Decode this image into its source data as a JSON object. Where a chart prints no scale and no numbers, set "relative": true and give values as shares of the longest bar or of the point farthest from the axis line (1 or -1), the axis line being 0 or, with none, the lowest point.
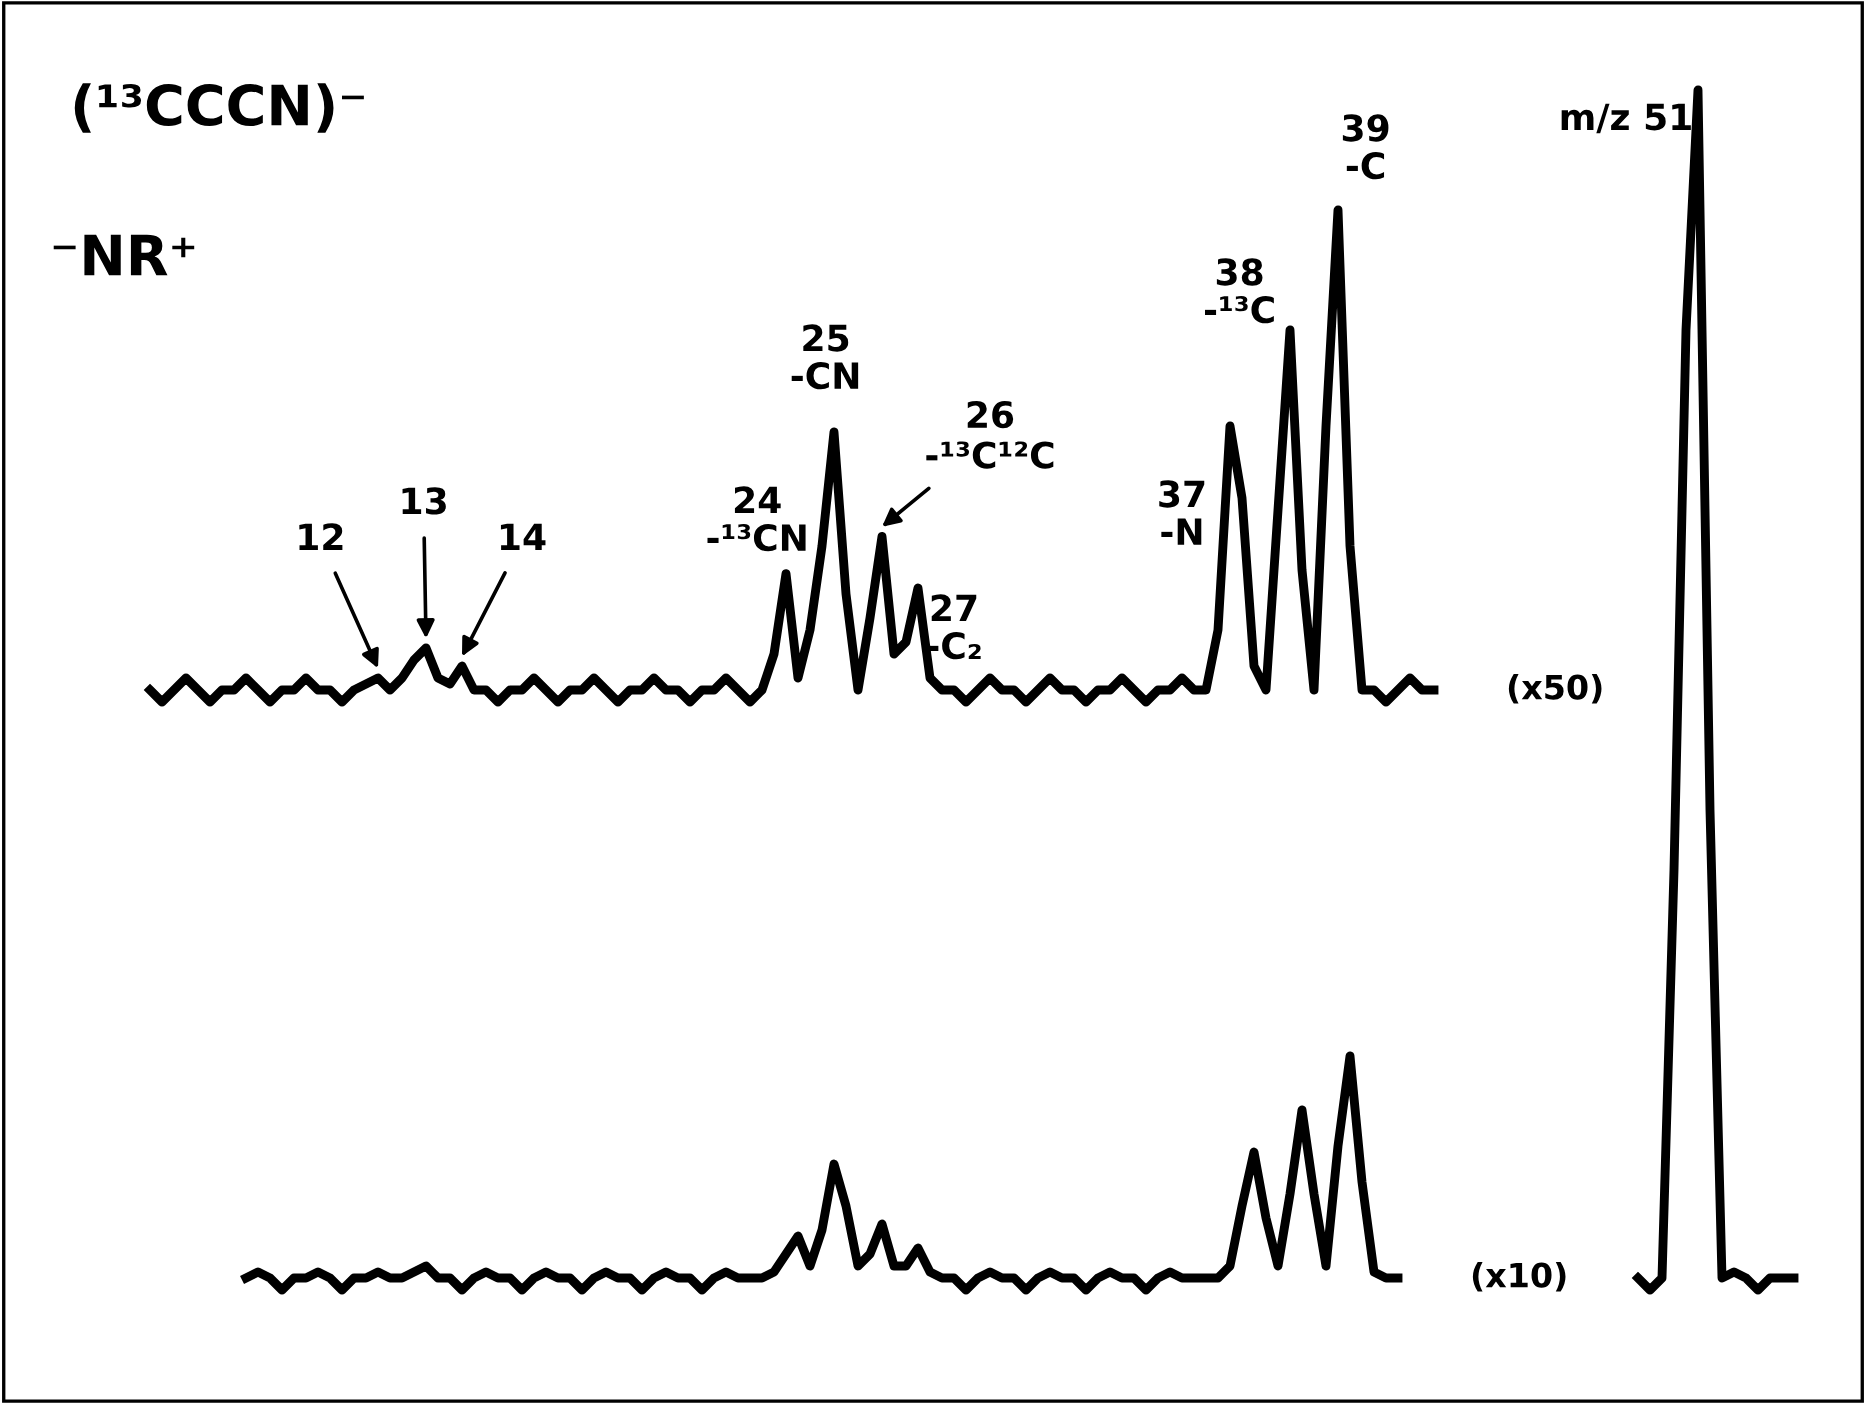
{
  "chart_data": {
    "type": "line",
    "relative": true,
    "title": "(¹³CCCN)⁻",
    "subtitle": "⁻NR⁺",
    "grid": false,
    "legend": false,
    "categories": [
      null,
      null,
      null,
      null,
      null,
      null,
      null,
      null,
      null,
      null,
      null,
      null,
      null,
      null,
      null,
      null,
      null,
      null,
      null,
      null,
      null,
      null,
      null,
      null,
      null,
      null,
      null,
      null,
      null,
      null,
      null,
      null,
      null,
      null,
      null,
      null,
      null,
      null,
      null,
      null,
      null,
      null,
      null,
      null,
      null,
      null,
      null,
      null,
      null,
      null,
      null,
      null,
      null,
      null,
      null,
      null,
      null,
      null,
      null,
      null,
      null,
      null,
      null,
      null,
      null,
      null,
      null,
      null,
      null,
      null,
      null,
      null,
      null,
      null,
      null,
      null,
      null,
      null,
      null,
      null,
      null,
      null,
      null,
      null,
      null,
      null,
      null,
      null,
      null,
      null,
      null,
      null,
      null,
      null,
      null,
      null,
      null,
      null,
      null,
      null,
      null,
      null,
      null,
      null,
      null,
      null,
      null,
      null,
      null,
      null,
      null,
      null,
      null,
      null,
      null,
      null,
      null,
      null,
      null,
      null,
      null,
      null,
      null,
      null,
      null,
      null,
      null,
      null,
      null,
      null,
      null,
      null,
      null,
      null,
      null,
      null,
      null,
      null
    ],
    "series": [
      {
        "name": "(x50)",
        "color": "#000000",
        "values": [
          0.5,
          0.49,
          0.5,
          0.51,
          0.5,
          0.49,
          0.5,
          0.5,
          0.51,
          0.5,
          0.49,
          0.5,
          0.5,
          0.51,
          0.5,
          0.5,
          0.49,
          0.5,
          0.505,
          0.51,
          0.5,
          0.51,
          0.525,
          0.535,
          0.51,
          0.505,
          0.52,
          0.5,
          0.5,
          0.49,
          0.5,
          0.5,
          0.51,
          0.5,
          0.49,
          0.5,
          0.5,
          0.51,
          0.5,
          0.49,
          0.5,
          0.5,
          0.51,
          0.5,
          0.5,
          0.49,
          0.5,
          0.5,
          0.51,
          0.5,
          0.49,
          0.5,
          0.53,
          0.597,
          0.51,
          0.55,
          0.62,
          0.715,
          0.58,
          0.5,
          0.56,
          0.628,
          0.53,
          0.54,
          0.585,
          0.51,
          0.5,
          0.5,
          0.49,
          0.5,
          0.51,
          0.5,
          0.5,
          0.49,
          0.5,
          0.51,
          0.5,
          0.5,
          0.49,
          0.5,
          0.5,
          0.51,
          0.5,
          0.49,
          0.5,
          0.5,
          0.51,
          0.5,
          0.5,
          0.55,
          0.72,
          0.66,
          0.52,
          0.5,
          0.65,
          0.8,
          0.6,
          0.5,
          0.72,
          0.9,
          0.62,
          0.5,
          0.5,
          0.49,
          0.5,
          0.51,
          0.5,
          0.5,
          null,
          null,
          null,
          null,
          null,
          null,
          null,
          null,
          null,
          null,
          null,
          null,
          null,
          null,
          null,
          null,
          null,
          null,
          null,
          null,
          null,
          null,
          null,
          null,
          null,
          null,
          null,
          null,
          null,
          null
        ]
      },
      {
        "name": "(x10)",
        "color": "#000000",
        "values": [
          null,
          null,
          null,
          null,
          null,
          null,
          null,
          null,
          0.01,
          0.015,
          0.01,
          0,
          0.01,
          0.01,
          0.015,
          0.01,
          0,
          0.01,
          0.01,
          0.015,
          0.01,
          0.01,
          0.015,
          0.02,
          0.01,
          0.01,
          0,
          0.01,
          0.015,
          0.01,
          0.01,
          0,
          0.01,
          0.015,
          0.01,
          0.01,
          0,
          0.01,
          0.015,
          0.01,
          0.01,
          0,
          0.01,
          0.015,
          0.01,
          0.01,
          0,
          0.01,
          0.015,
          0.01,
          0.01,
          0.01,
          0.015,
          0.03,
          0.045,
          0.02,
          0.05,
          0.105,
          0.07,
          0.02,
          0.03,
          0.055,
          0.02,
          0.02,
          0.035,
          0.015,
          0.01,
          0.01,
          0,
          0.01,
          0.015,
          0.01,
          0.01,
          0,
          0.01,
          0.015,
          0.01,
          0.01,
          0,
          0.01,
          0.015,
          0.01,
          0.01,
          0,
          0.01,
          0.015,
          0.01,
          0.01,
          0.01,
          0.01,
          0.02,
          0.07,
          0.115,
          0.06,
          0.02,
          0.08,
          0.15,
          0.08,
          0.02,
          0.12,
          0.195,
          0.09,
          0.015,
          0.01,
          0.01,
          null,
          null,
          null,
          null,
          null,
          null,
          null,
          null,
          null,
          null,
          null,
          null,
          null,
          null,
          null,
          null,
          null,
          null,
          null,
          0.01,
          0,
          0.01,
          0.35,
          0.8,
          1.0,
          0.4,
          0.01,
          0.015,
          0.01,
          0,
          0.01,
          0.01,
          0.01
        ]
      }
    ],
    "annotations": [
      "12",
      "13",
      "14",
      "24\n-¹³CN",
      "25\n-CN",
      "26\n-¹³C¹²C",
      "27\n-C₂",
      "37\n-N",
      "38\n-¹³C",
      "39\n-C",
      "m/z 51"
    ]
  }
}
